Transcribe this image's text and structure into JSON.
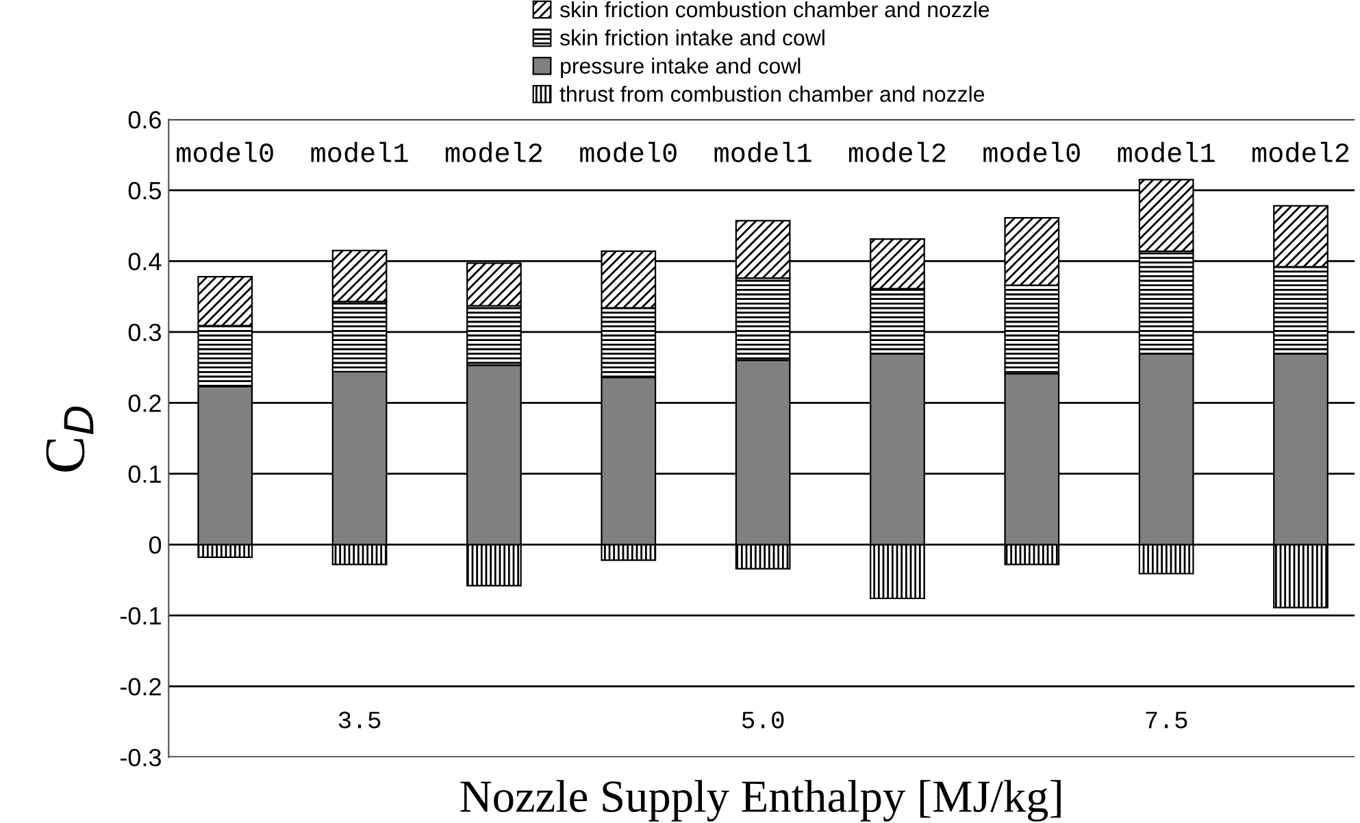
{
  "chart_data": {
    "type": "bar",
    "stacked": true,
    "categories": [
      "model0",
      "model1",
      "model2",
      "model0",
      "model1",
      "model2",
      "model0",
      "model1",
      "model2"
    ],
    "series": [
      {
        "name": "thrust from combustion chamber and nozzle",
        "color": "#000000",
        "values": [
          -0.018,
          -0.028,
          -0.058,
          -0.022,
          -0.034,
          -0.076,
          -0.028,
          -0.041,
          -0.089
        ]
      },
      {
        "name": "pressure intake and cowl",
        "color": "#808080",
        "values": [
          0.223,
          0.244,
          0.253,
          0.236,
          0.26,
          0.269,
          0.241,
          0.269,
          0.269
        ]
      },
      {
        "name": "skin friction intake and cowl",
        "color": "#000000",
        "values": [
          0.086,
          0.099,
          0.084,
          0.098,
          0.116,
          0.092,
          0.125,
          0.145,
          0.123
        ]
      },
      {
        "name": "skin friction combustion chamber and nozzle",
        "color": "#000000",
        "values": [
          0.069,
          0.072,
          0.06,
          0.08,
          0.081,
          0.07,
          0.095,
          0.101,
          0.086
        ]
      }
    ],
    "ylabel": "C$_{D}$",
    "xlabel": "Nozzle Supply Enthalpy [MJ/kg]",
    "ylim": [
      -0.3,
      0.6
    ],
    "yticks": [
      -0.3,
      -0.2,
      -0.1,
      0,
      0.1,
      0.2,
      0.3,
      0.4,
      0.5,
      0.6
    ],
    "grid": "y",
    "legend": "top",
    "annotations": [
      "3.5",
      "5.0",
      "7.5"
    ]
  }
}
